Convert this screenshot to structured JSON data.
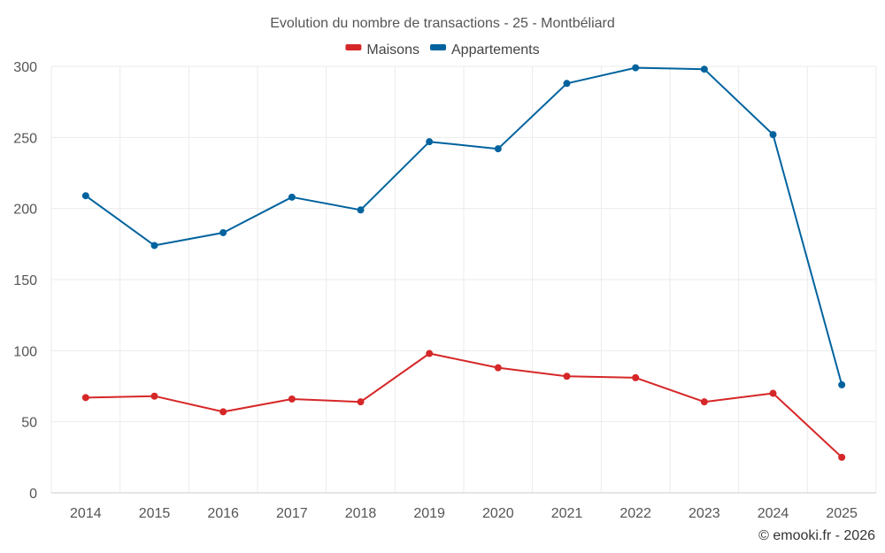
{
  "chart_data": {
    "type": "line",
    "title": "Evolution du nombre de transactions - 25 - Montbéliard",
    "xlabel": "",
    "ylabel": "",
    "x": [
      "2014",
      "2015",
      "2016",
      "2017",
      "2018",
      "2019",
      "2020",
      "2021",
      "2022",
      "2023",
      "2024",
      "2025"
    ],
    "ylim": [
      0,
      300
    ],
    "yticks": [
      0,
      50,
      100,
      150,
      200,
      250,
      300
    ],
    "grid": true,
    "legend_position": "top-center",
    "series": [
      {
        "name": "Maisons",
        "color": "#d62728",
        "values": [
          67,
          68,
          57,
          66,
          64,
          98,
          88,
          82,
          81,
          64,
          70,
          25
        ]
      },
      {
        "name": "Appartements",
        "color": "#00639e",
        "values": [
          209,
          174,
          183,
          208,
          199,
          247,
          242,
          288,
          299,
          298,
          252,
          76
        ]
      }
    ],
    "credit": "© emooki.fr - 2026"
  }
}
